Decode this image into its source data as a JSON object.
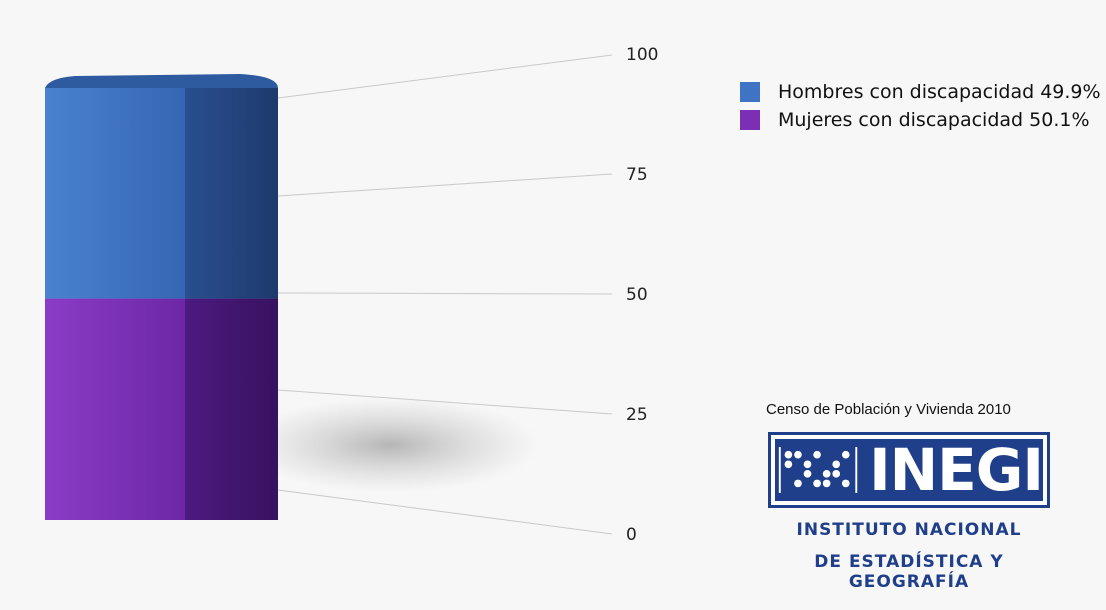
{
  "chart_data": {
    "type": "bar",
    "stacked": true,
    "ylim": [
      0,
      100
    ],
    "yticks": [
      "0",
      "25",
      "50",
      "75",
      "100"
    ],
    "categories": [
      ""
    ],
    "series": [
      {
        "name": "Mujeres con discapacidad 50.1%",
        "values": [
          50.1
        ],
        "color": "#7a2fb5"
      },
      {
        "name": "Hombres con discapacidad 49.9%",
        "values": [
          49.9
        ],
        "color": "#3f73c4"
      }
    ],
    "legend_position": "top-right",
    "grid": true
  },
  "legend": {
    "items": [
      {
        "label": "Hombres con discapacidad 49.9%",
        "color": "#3f73c4"
      },
      {
        "label": "Mujeres con discapacidad 50.1%",
        "color": "#7a2fb5"
      }
    ]
  },
  "source": {
    "text": "Censo de Población y Vivienda 2010"
  },
  "logo": {
    "word": "INEGI",
    "line1": "INSTITUTO NACIONAL",
    "line2": "DE ESTADÍSTICA Y GEOGRAFÍA",
    "color": "#1f3f8a"
  }
}
